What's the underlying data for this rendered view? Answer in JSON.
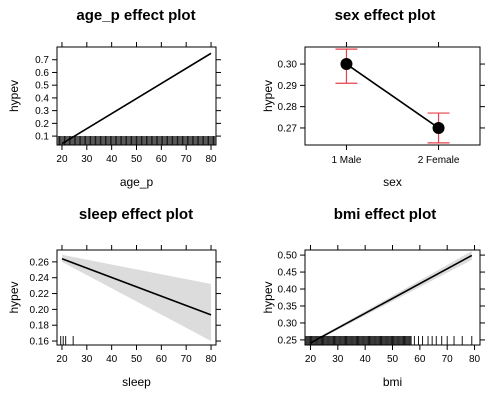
{
  "chart_data": [
    {
      "type": "line",
      "title": "age_p effect plot",
      "xlabel": "age_p",
      "ylabel": "hypev",
      "xlim": [
        18,
        82
      ],
      "ylim": [
        0.03,
        0.8
      ],
      "xticks": [
        20,
        30,
        40,
        50,
        60,
        70,
        80
      ],
      "yticks": [
        0.1,
        0.2,
        0.3,
        0.4,
        0.5,
        0.6,
        0.7
      ],
      "yticks_right": [
        0.1,
        0.2,
        0.3,
        0.4,
        0.5,
        0.6,
        0.7
      ],
      "line": {
        "x": [
          20,
          80
        ],
        "y": [
          0.04,
          0.75
        ]
      },
      "band": {
        "x": [
          20,
          80
        ],
        "lower": [
          0.038,
          0.74
        ],
        "upper": [
          0.042,
          0.76
        ]
      },
      "rug": {
        "from": 18,
        "to": 82,
        "step": 0.5
      }
    },
    {
      "type": "scatter",
      "title": "sex effect plot",
      "xlabel": "sex",
      "ylabel": "hypev",
      "categories": [
        "1 Male",
        "2 Female"
      ],
      "ylim": [
        0.262,
        0.308
      ],
      "yticks": [
        0.27,
        0.28,
        0.29,
        0.3
      ],
      "values": [
        0.3,
        0.27
      ],
      "lower": [
        0.291,
        0.263
      ],
      "upper": [
        0.307,
        0.277
      ],
      "error_bar_color": "#e8424a"
    },
    {
      "type": "line",
      "title": "sleep effect plot",
      "xlabel": "sleep",
      "ylabel": "hypev",
      "xlim": [
        18,
        82
      ],
      "ylim": [
        0.155,
        0.275
      ],
      "xticks": [
        20,
        30,
        40,
        50,
        60,
        70,
        80
      ],
      "yticks": [
        0.16,
        0.18,
        0.2,
        0.22,
        0.24,
        0.26
      ],
      "line": {
        "x": [
          20,
          80
        ],
        "y": [
          0.264,
          0.193
        ]
      },
      "band": {
        "x": [
          20,
          80
        ],
        "lower": [
          0.26,
          0.16
        ],
        "upper": [
          0.269,
          0.232
        ]
      },
      "band_color": "#dcdcdc",
      "rug": {
        "values": [
          19.5,
          20.5,
          21.5,
          24.5
        ]
      }
    },
    {
      "type": "line",
      "title": "bmi effect plot",
      "xlabel": "bmi",
      "ylabel": "hypev",
      "xlim": [
        18,
        82
      ],
      "ylim": [
        0.235,
        0.515
      ],
      "xticks": [
        20,
        30,
        40,
        50,
        60,
        70,
        80
      ],
      "yticks": [
        0.25,
        0.3,
        0.35,
        0.4,
        0.45,
        0.5
      ],
      "line": {
        "x": [
          20,
          79
        ],
        "y": [
          0.241,
          0.499
        ]
      },
      "band": {
        "x": [
          20,
          79
        ],
        "lower": [
          0.238,
          0.486
        ],
        "upper": [
          0.244,
          0.512
        ]
      },
      "band_color": "#dcdcdc",
      "rug": {
        "from": 18,
        "to": 57,
        "step": 0.4,
        "sparse": [
          58,
          59.5,
          61,
          63,
          64.5,
          66,
          68,
          70,
          72.5,
          75.5,
          79
        ]
      }
    }
  ]
}
